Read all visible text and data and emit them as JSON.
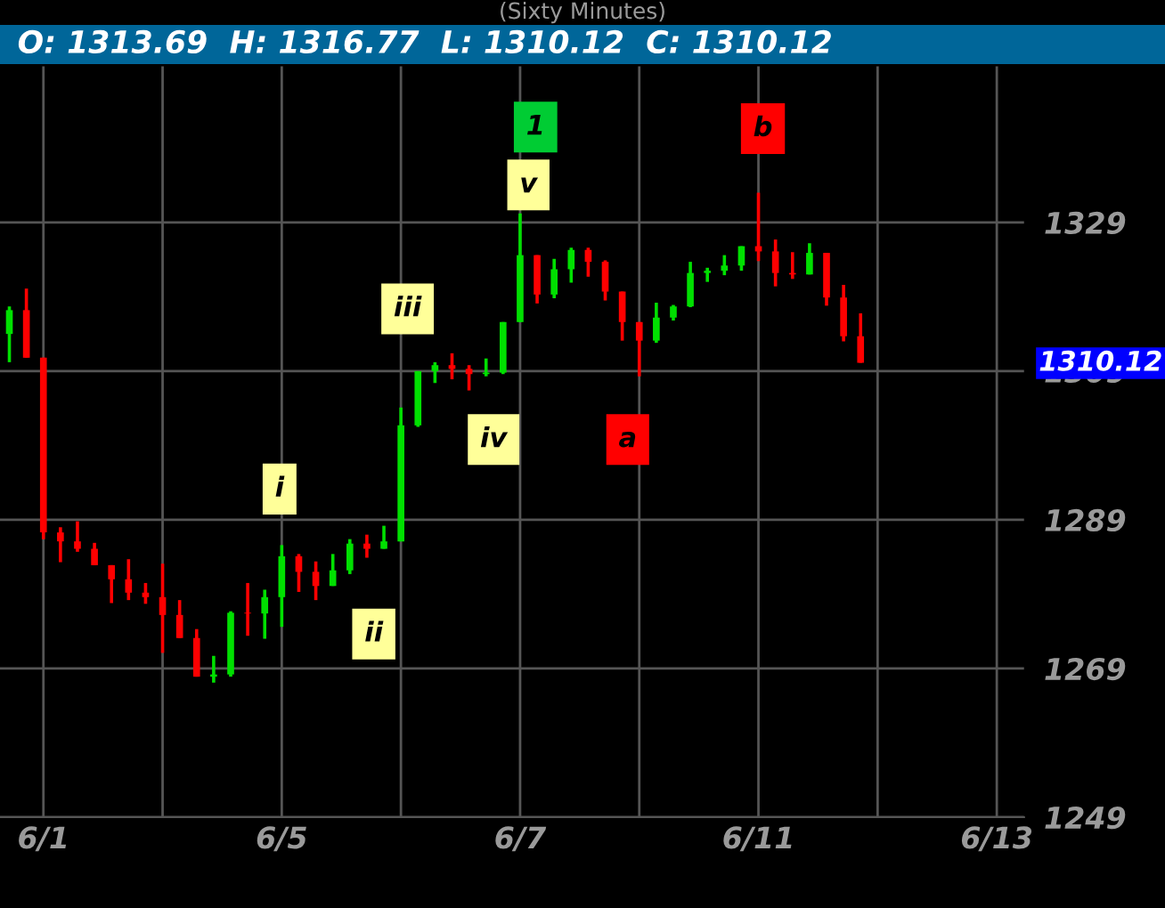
{
  "chart_data": {
    "type": "candlestick",
    "title": "(Sixty Minutes)",
    "subtitle": "O: 1313.69  H: 1316.77  L: 1310.12  C: 1310.12",
    "categories": [
      null,
      null,
      "6/1",
      null,
      null,
      null,
      null,
      null,
      null,
      null,
      null,
      null,
      null,
      null,
      null,
      null,
      "6/5",
      null,
      null,
      null,
      null,
      null,
      null,
      null,
      null,
      null,
      null,
      null,
      null,
      null,
      "6/7",
      null,
      null,
      null,
      null,
      null,
      null,
      null,
      null,
      null,
      null,
      null,
      null,
      null,
      "6/11",
      null,
      null,
      null,
      null,
      null,
      null,
      null,
      null,
      null,
      null,
      null,
      null,
      null,
      "6/13",
      null
    ],
    "ohlc": [
      [
        1314,
        1317.7,
        1310.2,
        1317.2
      ],
      [
        1317.2,
        1320.1,
        1310.8,
        1310.8
      ],
      [
        1310.8,
        1310.8,
        1286.4,
        1287.3
      ],
      [
        1287.3,
        1288.0,
        1283.3,
        1286.1
      ],
      [
        1286.1,
        1288.8,
        1284.7,
        1285.1
      ],
      [
        1285.1,
        1285.9,
        1282.9,
        1282.9
      ],
      [
        1282.9,
        1282.9,
        1277.8,
        1281.0
      ],
      [
        1281.0,
        1283.7,
        1278.2,
        1279.2
      ],
      [
        1279.2,
        1280.5,
        1277.7,
        1278.6
      ],
      [
        1278.6,
        1283.1,
        1271.1,
        1276.2
      ],
      [
        1276.2,
        1278.2,
        1273.1,
        1273.1
      ],
      [
        1273.1,
        1274.3,
        1267.9,
        1267.9
      ],
      [
        1267.9,
        1270.7,
        1267.1,
        1268.2
      ],
      [
        1268.2,
        1276.7,
        1267.9,
        1276.5
      ],
      [
        1276.5,
        1280.5,
        1273.4,
        1276.4
      ],
      [
        1276.4,
        1279.6,
        1273.0,
        1278.6
      ],
      [
        1278.6,
        1285.6,
        1274.6,
        1284.1
      ],
      [
        1284.1,
        1284.4,
        1279.3,
        1282.0
      ],
      [
        1282.0,
        1283.4,
        1278.2,
        1280.1
      ],
      [
        1280.1,
        1284.4,
        1280.1,
        1282.2
      ],
      [
        1282.2,
        1286.4,
        1281.7,
        1285.8
      ],
      [
        1285.8,
        1287.0,
        1283.9,
        1285.1
      ],
      [
        1285.1,
        1288.2,
        1285.1,
        1286.1
      ],
      [
        1286.1,
        1304.1,
        1286.1,
        1301.7
      ],
      [
        1301.7,
        1309.0,
        1301.5,
        1309.0
      ],
      [
        1309.0,
        1310.2,
        1307.4,
        1309.8
      ],
      [
        1309.8,
        1311.4,
        1307.9,
        1309.3
      ],
      [
        1309.3,
        1309.8,
        1306.4,
        1308.6
      ],
      [
        1308.6,
        1310.7,
        1308.3,
        1308.8
      ],
      [
        1308.8,
        1315.6,
        1308.6,
        1315.6
      ],
      [
        1315.6,
        1330.2,
        1315.6,
        1324.6
      ],
      [
        1324.6,
        1324.6,
        1318.1,
        1319.3
      ],
      [
        1319.3,
        1324.1,
        1318.8,
        1322.7
      ],
      [
        1322.7,
        1325.6,
        1320.9,
        1325.3
      ],
      [
        1325.3,
        1325.6,
        1321.7,
        1323.7
      ],
      [
        1323.7,
        1323.9,
        1318.5,
        1319.7
      ],
      [
        1319.7,
        1319.7,
        1313.1,
        1315.6
      ],
      [
        1315.6,
        1315.6,
        1308.3,
        1313.1
      ],
      [
        1313.1,
        1318.2,
        1312.8,
        1316.2
      ],
      [
        1316.2,
        1317.9,
        1315.8,
        1317.7
      ],
      [
        1317.7,
        1323.7,
        1317.6,
        1322.2
      ],
      [
        1322.2,
        1322.9,
        1321.0,
        1322.5
      ],
      [
        1322.5,
        1324.6,
        1321.9,
        1323.2
      ],
      [
        1323.2,
        1325.8,
        1322.5,
        1325.8
      ],
      [
        1325.8,
        1333.0,
        1323.8,
        1325.1
      ],
      [
        1325.1,
        1326.7,
        1320.4,
        1322.2
      ],
      [
        1322.2,
        1325.0,
        1321.4,
        1322.0
      ],
      [
        1322.0,
        1326.2,
        1322.0,
        1324.9
      ],
      [
        1324.9,
        1324.9,
        1317.8,
        1318.9
      ],
      [
        1318.9,
        1320.6,
        1313.0,
        1313.69
      ],
      [
        1313.69,
        1316.77,
        1310.12,
        1310.12
      ],
      null,
      null,
      null,
      null,
      null,
      null,
      null,
      null,
      null
    ],
    "colors": [
      "#00e000",
      "#ff0000",
      "#ff0000",
      "#ff0000",
      "#ff0000",
      "#ff0000",
      "#ff0000",
      "#ff0000",
      "#ff0000",
      "#ff0000",
      "#ff0000",
      "#ff0000",
      "#00e000",
      "#00e000",
      "#ff0000",
      "#00e000",
      "#00e000",
      "#ff0000",
      "#ff0000",
      "#00e000",
      "#00e000",
      "#ff0000",
      "#00e000",
      "#00e000",
      "#00e000",
      "#00e000",
      "#ff0000",
      "#ff0000",
      "#00e000",
      "#00e000",
      "#00e000",
      "#ff0000",
      "#00e000",
      "#00e000",
      "#ff0000",
      "#ff0000",
      "#ff0000",
      "#ff0000",
      "#00e000",
      "#00e000",
      "#00e000",
      "#00e000",
      "#00e000",
      "#00e000",
      "#ff0000",
      "#ff0000",
      "#ff0000",
      "#00e000",
      "#ff0000",
      "#ff0000",
      "#ff0000",
      null,
      null,
      null,
      null,
      null,
      null,
      null,
      null,
      null
    ],
    "ylim": [
      1249,
      1350
    ],
    "yticks": [
      1249,
      1269,
      1289,
      1309,
      1329
    ],
    "grid": true,
    "annotations": [
      "1",
      "b",
      "v",
      "iii",
      "iv",
      "a",
      "i",
      "ii",
      "1310.12"
    ]
  }
}
